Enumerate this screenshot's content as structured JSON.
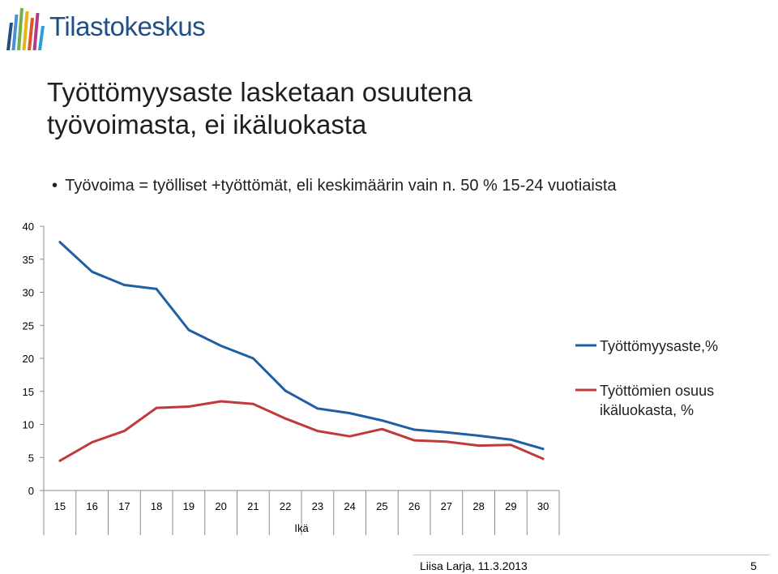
{
  "header": {
    "logo_text": "Tilastokeskus",
    "logo_stripe_colors": [
      "#1f4f86",
      "#4e8fcf",
      "#6fb24a",
      "#e7b416",
      "#d9542b",
      "#b23a8a",
      "#2a9fd6"
    ]
  },
  "slide": {
    "title_line1": "Työttömyysaste lasketaan osuutena",
    "title_line2": "työvoimasta, ei ikäluokasta",
    "bullet_marker": "•",
    "bullet_text": "Työvoima = työlliset +työttömät, eli keskimäärin vain n. 50 % 15-24 vuotiaista"
  },
  "chart_data": {
    "type": "line",
    "xlabel": "Ikä",
    "ylabel": "",
    "ylim": [
      0,
      40
    ],
    "yticks": [
      0,
      5,
      10,
      15,
      20,
      25,
      30,
      35,
      40
    ],
    "x": [
      15,
      16,
      17,
      18,
      19,
      20,
      21,
      22,
      23,
      24,
      25,
      26,
      27,
      28,
      29,
      30
    ],
    "grid": false,
    "legend_position": "right",
    "series": [
      {
        "name": "Työttömyysaste,%",
        "color": "#1f5fa3",
        "values": [
          37.6,
          33.1,
          31.1,
          30.5,
          24.3,
          21.9,
          20.0,
          15.1,
          12.4,
          11.7,
          10.6,
          9.2,
          8.8,
          8.3,
          7.7,
          6.3
        ]
      },
      {
        "name": "Työttömien osuus ikäluokasta, %",
        "color": "#c0393b",
        "values": [
          4.5,
          7.3,
          9.0,
          12.5,
          12.7,
          13.5,
          13.1,
          10.9,
          9.0,
          8.2,
          9.3,
          7.6,
          7.4,
          6.8,
          6.9,
          4.8
        ]
      }
    ]
  },
  "footer": {
    "author_date": "Liisa Larja, 11.3.2013",
    "page_number": "5"
  }
}
